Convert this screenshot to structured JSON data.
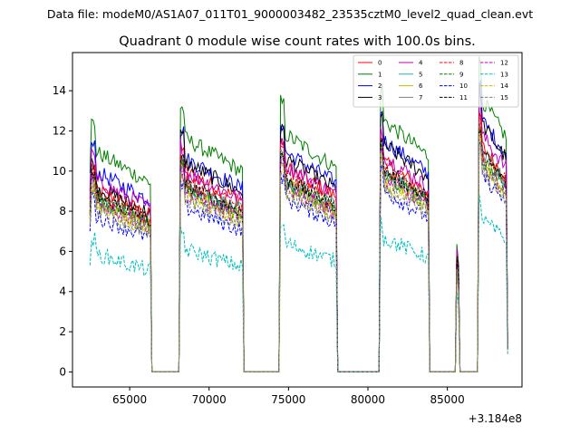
{
  "chart_data": {
    "type": "line",
    "suptitle": "Data file: modeM0/AS1A07_011T01_9000003482_23535cztM0_level2_quad_clean.evt",
    "title": "Quadrant 0 module wise count rates with 100.0s bins.",
    "xlabel": "",
    "ylabel": "",
    "offset_text": "+3.184e8",
    "xlim": [
      61400,
      89700
    ],
    "ylim": [
      -0.75,
      15.9
    ],
    "x_ticks": [
      65000,
      70000,
      75000,
      80000,
      85000
    ],
    "x_tick_labels": [
      "65000",
      "70000",
      "75000",
      "80000",
      "85000"
    ],
    "y_ticks": [
      0,
      2,
      4,
      6,
      8,
      10,
      12,
      14
    ],
    "y_tick_labels": [
      "0",
      "2",
      "4",
      "6",
      "8",
      "10",
      "12",
      "14"
    ],
    "legend_position": "top-right",
    "legend_columns": 4,
    "segments": [
      {
        "start": 62600,
        "end": 66300
      },
      {
        "start": 68200,
        "end": 72100
      },
      {
        "start": 74500,
        "end": 78000
      },
      {
        "start": 80800,
        "end": 83800
      },
      {
        "start": 85600,
        "end": 85700
      },
      {
        "start": 87000,
        "end": 88700
      }
    ],
    "series": [
      {
        "name": "0",
        "color": "#ff0000",
        "dash": "solid",
        "levels": [
          8.2,
          9.0,
          9.2,
          9.4,
          5.0,
          10.2
        ]
      },
      {
        "name": "1",
        "color": "#008000",
        "dash": "solid",
        "levels": [
          9.9,
          10.5,
          10.7,
          11.3,
          6.0,
          12.3
        ]
      },
      {
        "name": "2",
        "color": "#0000ff",
        "dash": "solid",
        "levels": [
          9.0,
          9.6,
          9.9,
          10.4,
          5.6,
          11.4
        ]
      },
      {
        "name": "3",
        "color": "#000000",
        "dash": "solid",
        "levels": [
          8.3,
          9.4,
          9.6,
          10.2,
          5.5,
          11.2
        ]
      },
      {
        "name": "4",
        "color": "#bf00bf",
        "dash": "solid",
        "levels": [
          8.6,
          9.0,
          9.3,
          9.7,
          5.2,
          10.7
        ]
      },
      {
        "name": "5",
        "color": "#20b2aa",
        "dash": "solid",
        "levels": [
          7.8,
          8.4,
          8.6,
          8.9,
          4.8,
          9.7
        ]
      },
      {
        "name": "6",
        "color": "#bfbf00",
        "dash": "solid",
        "levels": [
          7.6,
          8.2,
          8.4,
          8.8,
          4.7,
          9.6
        ]
      },
      {
        "name": "7",
        "color": "#808080",
        "dash": "solid",
        "levels": [
          7.8,
          8.4,
          8.6,
          9.0,
          4.8,
          9.9
        ]
      },
      {
        "name": "8",
        "color": "#ff0000",
        "dash": "dashed",
        "levels": [
          8.0,
          8.5,
          8.8,
          9.1,
          4.9,
          10.0
        ]
      },
      {
        "name": "9",
        "color": "#008000",
        "dash": "dashed",
        "levels": [
          7.8,
          8.2,
          8.5,
          8.8,
          4.8,
          9.6
        ]
      },
      {
        "name": "10",
        "color": "#0000ff",
        "dash": "dashed",
        "levels": [
          7.0,
          7.4,
          7.8,
          8.1,
          4.4,
          8.9
        ]
      },
      {
        "name": "11",
        "color": "#000000",
        "dash": "dashed",
        "levels": [
          7.9,
          8.4,
          8.7,
          9.1,
          4.9,
          9.9
        ]
      },
      {
        "name": "12",
        "color": "#bf00bf",
        "dash": "dashed",
        "levels": [
          7.6,
          8.0,
          8.3,
          8.6,
          4.6,
          9.4
        ]
      },
      {
        "name": "13",
        "color": "#00bfbf",
        "dash": "dashed",
        "levels": [
          5.3,
          5.5,
          5.8,
          6.0,
          3.3,
          6.9
        ]
      },
      {
        "name": "14",
        "color": "#bfbf00",
        "dash": "dashed",
        "levels": [
          7.4,
          7.8,
          8.1,
          8.4,
          4.6,
          9.2
        ]
      },
      {
        "name": "15",
        "color": "#808080",
        "dash": "dashed",
        "levels": [
          7.3,
          7.7,
          8.0,
          8.3,
          4.5,
          9.1
        ]
      }
    ]
  }
}
